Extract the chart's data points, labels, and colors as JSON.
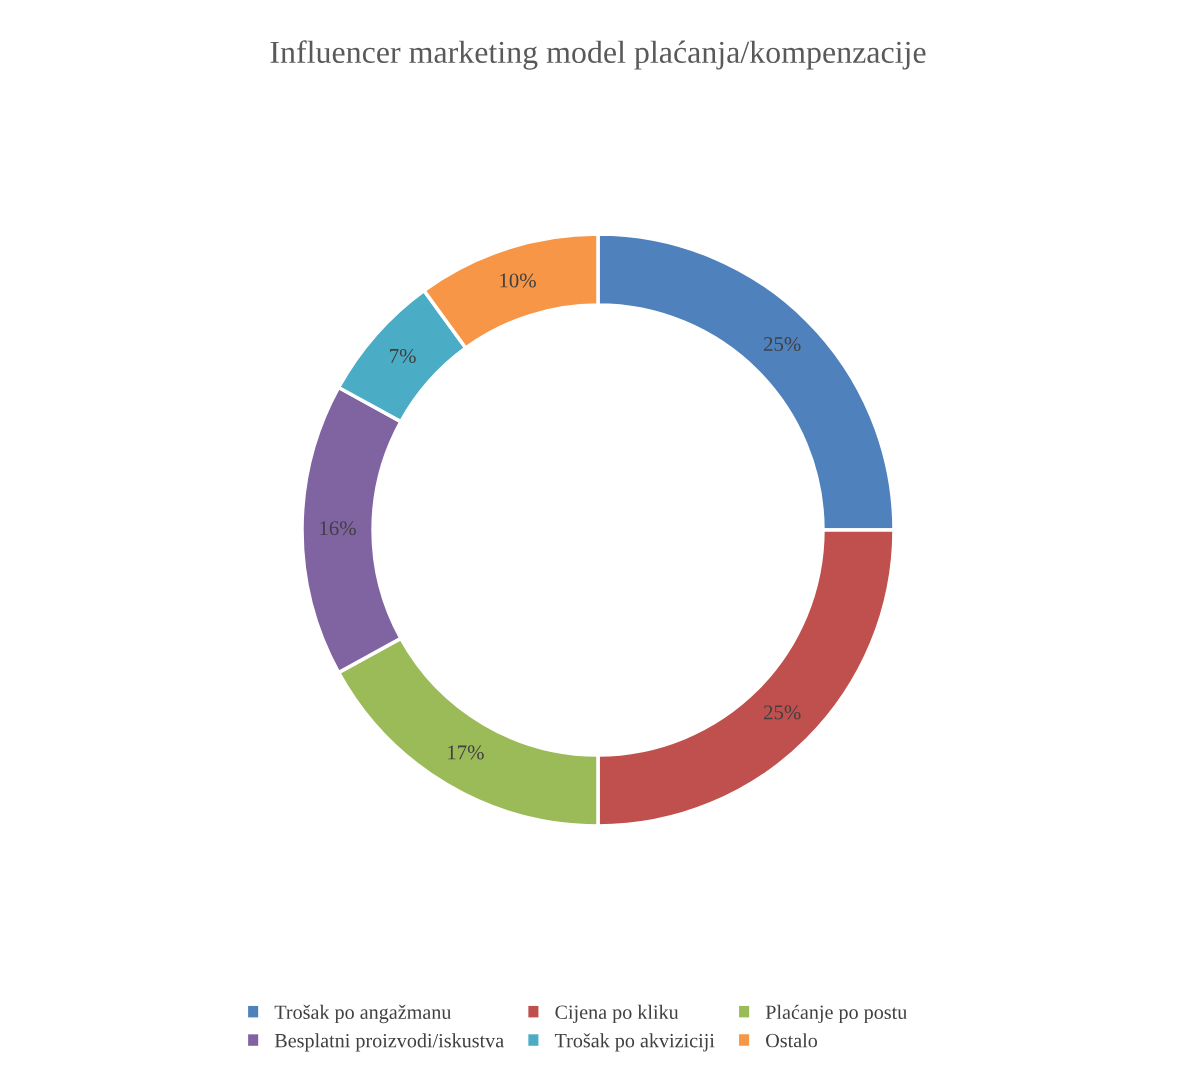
{
  "chart_data": {
    "type": "donut",
    "title": "Influencer marketing model plaćanja/kompenzacije",
    "categories": [
      "Trošak po angažmanu",
      "Cijena po kliku",
      "Plaćanje po postu",
      "Besplatni proizvodi/iskustva",
      "Trošak po akviziciji",
      "Ostalo"
    ],
    "values": [
      25,
      25,
      17,
      16,
      7,
      10
    ],
    "colors": [
      "#4f81bd",
      "#c0504d",
      "#9bbb59",
      "#8064a2",
      "#4bacc6",
      "#f79646"
    ],
    "value_labels": [
      "25%",
      "25%",
      "17%",
      "16%",
      "7%",
      "10%"
    ],
    "legend": "bottom"
  }
}
